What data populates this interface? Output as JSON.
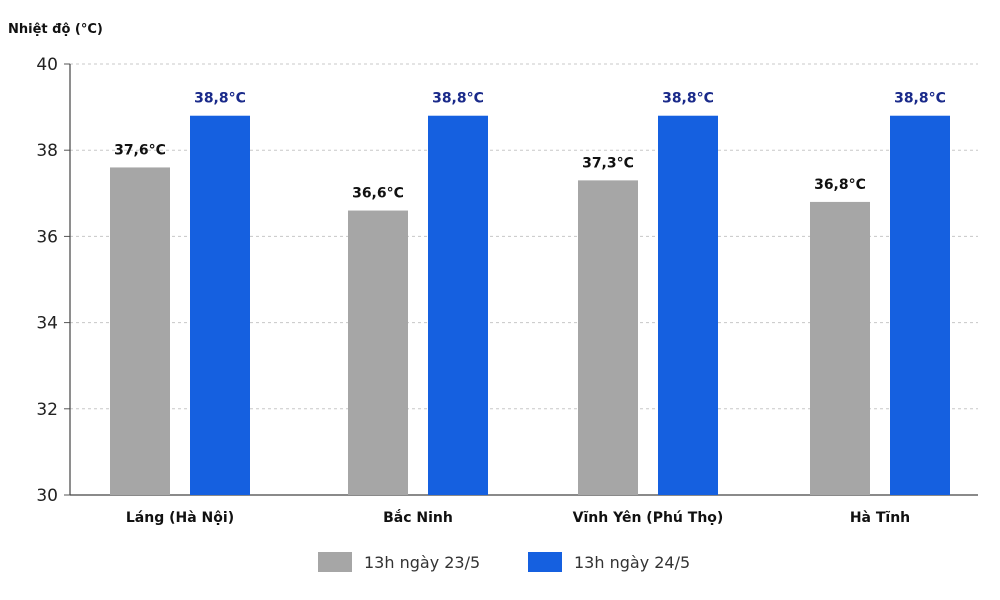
{
  "chart_data": {
    "type": "bar",
    "title": "",
    "xlabel": "",
    "ylabel": "Nhiệt độ (°C)",
    "ylim": [
      30,
      40
    ],
    "yticks": [
      30,
      32,
      34,
      36,
      38,
      40
    ],
    "grid": true,
    "legend_position": "bottom",
    "categories": [
      "Láng (Hà Nội)",
      "Bắc Ninh",
      "Vĩnh Yên (Phú Thọ)",
      "Hà Tĩnh"
    ],
    "series": [
      {
        "name": "13h ngày 23/5",
        "color": "#a6a6a6",
        "label_color": "#111111",
        "values": [
          37.6,
          36.6,
          37.3,
          36.8
        ],
        "labels": [
          "37,6°C",
          "36,6°C",
          "37,3°C",
          "36,8°C"
        ]
      },
      {
        "name": "13h ngày 24/5",
        "color": "#1560e0",
        "label_color": "#1a2a8a",
        "values": [
          38.8,
          38.8,
          38.8,
          38.8
        ],
        "labels": [
          "38,8°C",
          "38,8°C",
          "38,8°C",
          "38,8°C"
        ]
      }
    ]
  }
}
